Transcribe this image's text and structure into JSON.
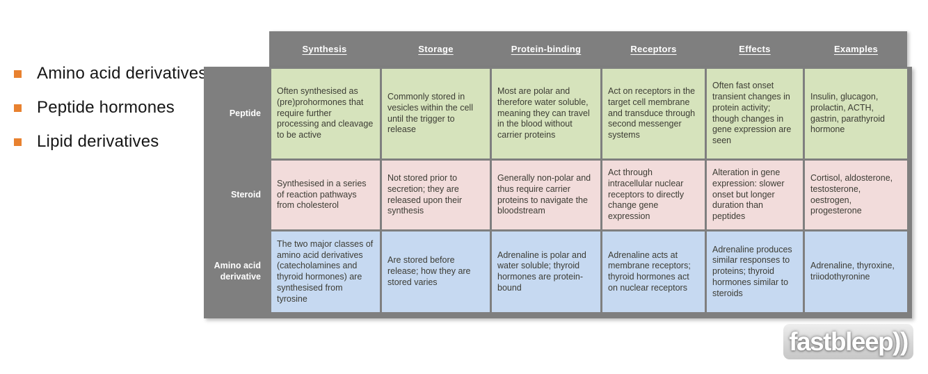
{
  "bullet_list": {
    "items": [
      "Amino acid derivatives",
      "Peptide hormones",
      "Lipid derivatives"
    ],
    "bullet_color": "#e8812f"
  },
  "table": {
    "columns": [
      "Synthesis",
      "Storage",
      "Protein-binding",
      "Receptors",
      "Effects",
      "Examples"
    ],
    "rows": [
      {
        "label": "Peptide",
        "row_color": "#d6e3bc",
        "cells": [
          "Often synthesised as (pre)prohormones that require further processing and cleavage to be active",
          "Commonly stored in vesicles within the cell until the trigger to release",
          "Most are polar and therefore water soluble, meaning they can travel in the blood without carrier proteins",
          "Act on receptors in the target cell membrane and transduce through second messenger systems",
          "Often fast onset transient changes in protein activity; though changes in gene expression are seen",
          "Insulin, glucagon, prolactin, ACTH, gastrin, parathyroid hormone"
        ]
      },
      {
        "label": "Steroid",
        "row_color": "#f2dcdb",
        "cells": [
          "Synthesised in a series of reaction pathways from cholesterol",
          "Not stored prior to secretion; they are released upon their synthesis",
          "Generally non-polar and thus require carrier proteins to navigate the bloodstream",
          "Act through intracellular nuclear receptors to directly change gene expression",
          "Alteration in gene expression: slower onset but longer duration than peptides",
          "Cortisol, aldosterone, testosterone, oestrogen, progesterone"
        ]
      },
      {
        "label": "Amino acid derivative",
        "row_color": "#c6d9f1",
        "cells": [
          "The two major classes of amino acid derivatives (catecholamines and thyroid hormones) are synthesised from tyrosine",
          "Are stored before release; how they are stored varies",
          "Adrenaline is polar and water soluble;  thyroid hormones are protein-bound",
          "Adrenaline acts at membrane receptors; thyroid hormones act on nuclear receptors",
          "Adrenaline produces similar responses to proteins; thyroid hormones similar to steroids",
          "Adrenaline, thyroxine, triiodothyronine"
        ]
      }
    ],
    "header_bg": "#7f7f7f",
    "header_text_color": "#ffffff"
  },
  "logo": {
    "text": "fastbleep))"
  }
}
